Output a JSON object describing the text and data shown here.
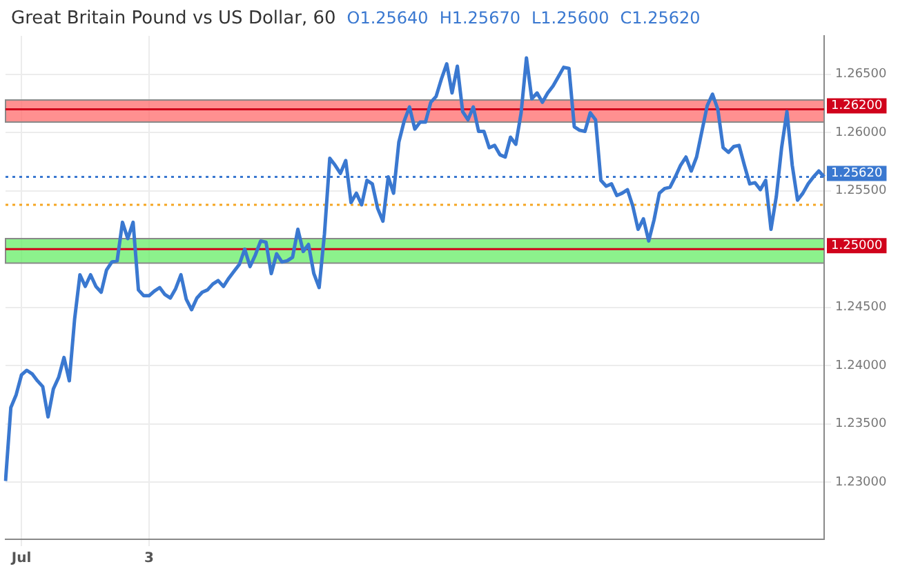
{
  "chart_data": {
    "type": "line",
    "title": "Great Britain Pound vs US Dollar, 60",
    "annotations": [
      "O1.25640",
      "H1.25670",
      "L1.25600",
      "C1.25620"
    ],
    "categories": [
      null,
      null,
      null,
      "Jul",
      null,
      null,
      null,
      null,
      null,
      null,
      null,
      null,
      null,
      null,
      null,
      null,
      null,
      null,
      null,
      null,
      null,
      null,
      null,
      null,
      null,
      null,
      null,
      "3",
      null,
      null,
      null,
      null,
      null,
      null,
      null,
      null,
      null,
      null,
      null,
      null,
      null,
      null,
      null,
      null,
      null,
      null,
      null,
      null,
      null,
      null,
      null,
      null,
      null,
      null,
      null,
      null,
      null,
      null,
      null,
      null,
      null,
      null,
      null,
      null,
      null,
      null,
      null,
      null,
      null,
      null,
      null,
      null,
      null,
      null,
      null,
      null,
      null,
      null,
      null,
      null,
      null,
      null,
      null,
      null,
      null,
      null,
      null,
      null,
      null,
      null,
      null,
      null,
      null,
      null,
      null,
      null,
      null,
      null,
      null,
      null,
      null,
      null,
      null,
      null,
      null,
      null,
      null,
      null,
      null,
      null,
      null,
      null,
      null,
      null,
      null,
      null,
      null,
      null,
      null,
      null,
      null,
      null,
      null,
      null,
      null,
      null,
      null,
      null,
      null,
      null,
      null,
      null,
      null,
      null,
      null,
      null,
      null,
      null,
      null,
      null,
      null,
      null,
      null,
      null,
      null,
      null,
      null,
      null,
      null,
      null,
      null,
      null,
      null,
      null,
      null
    ],
    "series": [
      {
        "color": "#3a78d0",
        "values": [
          1.2301,
          1.2364,
          1.2375,
          1.2392,
          1.2396,
          1.2393,
          1.2387,
          1.2382,
          1.2356,
          1.238,
          1.239,
          1.2407,
          1.2387,
          1.244,
          1.2478,
          1.2468,
          1.2478,
          1.2468,
          1.2463,
          1.2482,
          1.2489,
          1.249,
          1.2523,
          1.2509,
          1.2523,
          1.2465,
          1.246,
          1.246,
          1.2464,
          1.2467,
          1.2461,
          1.2458,
          1.2466,
          1.2478,
          1.2457,
          1.2448,
          1.2458,
          1.2463,
          1.2465,
          1.247,
          1.2473,
          1.2468,
          1.2475,
          1.2481,
          1.2487,
          1.25,
          1.2485,
          1.2495,
          1.2507,
          1.2506,
          1.2479,
          1.2496,
          1.2489,
          1.249,
          1.2493,
          1.2517,
          1.2498,
          1.2504,
          1.2479,
          1.2467,
          1.2513,
          1.2578,
          1.2572,
          1.2565,
          1.2576,
          1.254,
          1.2548,
          1.2538,
          1.2559,
          1.2556,
          1.2535,
          1.2524,
          1.2562,
          1.2548,
          1.2592,
          1.261,
          1.2622,
          1.2603,
          1.2609,
          1.2609,
          1.2626,
          1.2631,
          1.2646,
          1.2659,
          1.2634,
          1.2657,
          1.2618,
          1.2611,
          1.2622,
          1.2601,
          1.2601,
          1.2587,
          1.2589,
          1.2581,
          1.2579,
          1.2596,
          1.259,
          1.2617,
          1.2664,
          1.2629,
          1.2634,
          1.2626,
          1.2634,
          1.264,
          1.2648,
          1.2656,
          1.2655,
          1.2605,
          1.2602,
          1.2601,
          1.2617,
          1.2611,
          1.2559,
          1.2554,
          1.2556,
          1.2546,
          1.2548,
          1.2551,
          1.2537,
          1.2517,
          1.2526,
          1.2507,
          1.2525,
          1.2548,
          1.2552,
          1.2553,
          1.2562,
          1.2572,
          1.2579,
          1.2567,
          1.2579,
          1.2601,
          1.2623,
          1.2633,
          1.262,
          1.2587,
          1.2583,
          1.2588,
          1.2589,
          1.2572,
          1.2556,
          1.2557,
          1.2551,
          1.2559,
          1.2517,
          1.2545,
          1.2587,
          1.2618,
          1.2572,
          1.2542,
          1.2548,
          1.2556,
          1.2562,
          1.2567,
          1.2562
        ]
      }
    ],
    "ylim": [
      1.2251,
      1.2683
    ],
    "yticks": [
      {
        "value": 1.23,
        "label": "1.23000"
      },
      {
        "value": 1.235,
        "label": "1.23500"
      },
      {
        "value": 1.24,
        "label": "1.24000"
      },
      {
        "value": 1.245,
        "label": "1.24500"
      },
      {
        "value": 1.255,
        "label": "1.25500"
      },
      {
        "value": 1.26,
        "label": "1.26000"
      },
      {
        "value": 1.265,
        "label": "1.26500"
      }
    ],
    "ref_lines": [
      {
        "axis": "y",
        "value": 1.262,
        "label": "1.26200",
        "color": "#d0021b",
        "line_style": "solid"
      },
      {
        "axis": "y",
        "value": 1.25,
        "label": "1.25000",
        "color": "#d0021b",
        "line_style": "solid"
      },
      {
        "axis": "y",
        "value": 1.2562,
        "label": "1.25620",
        "color": "#3a78d0",
        "line_style": "dotted"
      },
      {
        "axis": "y",
        "value": 1.2538,
        "color": "#f5a623",
        "line_style": "dotted"
      }
    ],
    "bands": [
      {
        "axis": "y",
        "from": 1.2488,
        "to": 1.2509,
        "color": "#66ee66"
      },
      {
        "axis": "y",
        "from": 1.2609,
        "to": 1.2628,
        "color": "#ff6b6b"
      }
    ],
    "grid": true,
    "legend": false,
    "marker": "none",
    "line_style": "solid"
  }
}
